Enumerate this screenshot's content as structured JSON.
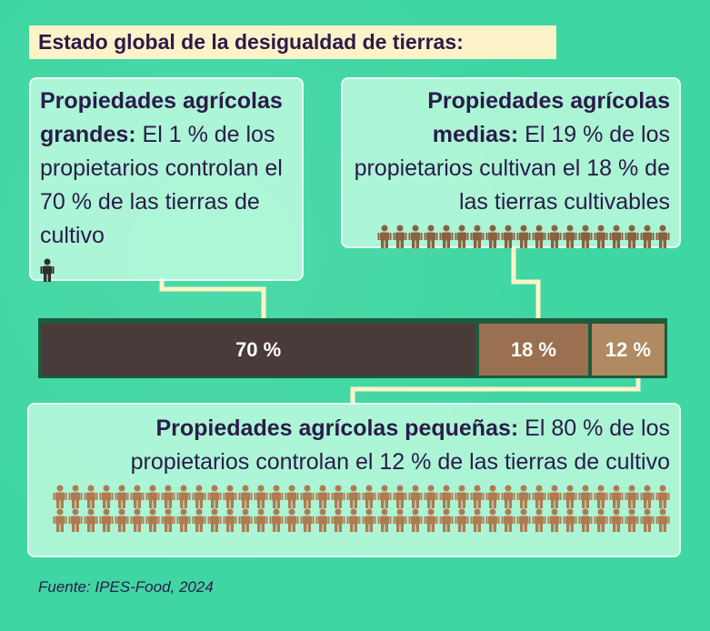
{
  "title": "Estado global de la desigualdad de tierras:",
  "chart_data": {
    "type": "stacked-bar",
    "series": [
      {
        "name": "Propiedades agrícolas grandes:",
        "description": "El 1 % de los propietarios controlan el 70 % de las tierras de cultivo",
        "color": "#4a3b3b",
        "values": [
          70
        ],
        "value_labels": [
          "70 %"
        ],
        "owners": 1,
        "icon_color": "#2e2e2e"
      },
      {
        "name": "Propiedades agrícolas medias:",
        "description": "El 19 % de los propietarios cultivan el 18 % de las tierras cultivables",
        "color": "#9a7050",
        "values": [
          18
        ],
        "value_labels": [
          "18 %"
        ],
        "owners": 19,
        "icon_color": "#8a6040"
      },
      {
        "name": "Propiedades agrícolas pequeñas:",
        "description": "El 80 % de los propietarios controlan el 12 % de las tierras de cultivo",
        "color": "#b08a62",
        "values": [
          12
        ],
        "value_labels": [
          "12 %"
        ],
        "owners": 80,
        "icon_color": "#b07a50"
      }
    ]
  },
  "source": "Fuente:  IPES-Food, 2024"
}
